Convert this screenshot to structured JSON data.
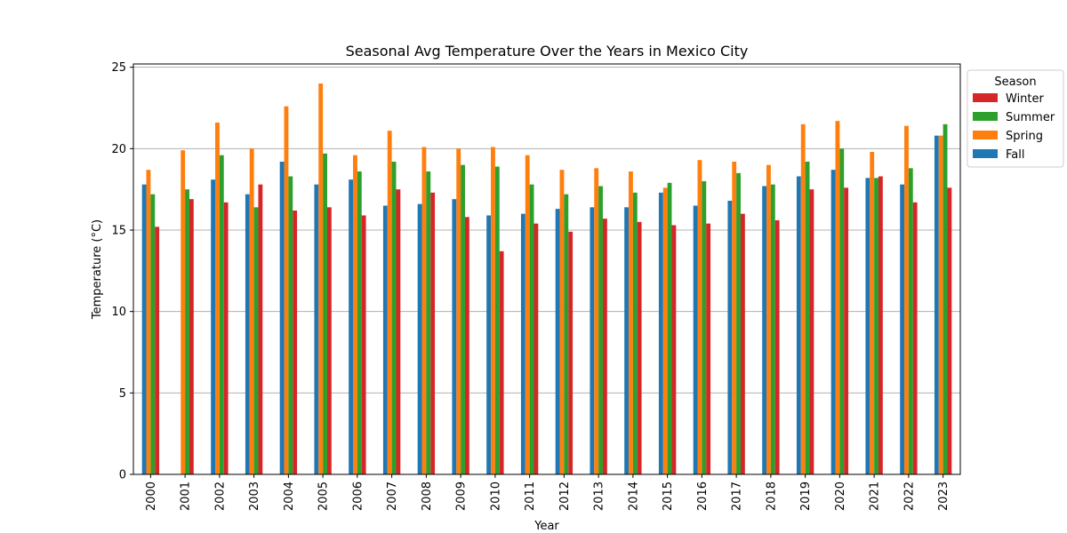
{
  "chart_data": {
    "type": "bar",
    "title": "Seasonal Avg Temperature Over the Years in Mexico City",
    "xlabel": "Year",
    "ylabel": "Temperature (°C)",
    "ylim": [
      0,
      25.2
    ],
    "yticks": [
      0,
      5,
      10,
      15,
      20,
      25
    ],
    "grid": "y",
    "legend_title": "Season",
    "legend_placement": "outside-top-right",
    "categories": [
      "2000",
      "2001",
      "2002",
      "2003",
      "2004",
      "2005",
      "2006",
      "2007",
      "2008",
      "2009",
      "2010",
      "2011",
      "2012",
      "2013",
      "2014",
      "2015",
      "2016",
      "2017",
      "2018",
      "2019",
      "2020",
      "2021",
      "2022",
      "2023"
    ],
    "series": [
      {
        "name": "Fall",
        "color": "#1f77b4",
        "values": [
          17.8,
          null,
          18.1,
          17.2,
          19.2,
          17.8,
          18.1,
          16.5,
          16.6,
          16.9,
          15.9,
          16.0,
          16.3,
          16.4,
          16.4,
          17.3,
          16.5,
          16.8,
          17.7,
          18.3,
          18.7,
          18.2,
          17.8,
          20.8
        ]
      },
      {
        "name": "Spring",
        "color": "#ff7f0e",
        "values": [
          18.7,
          19.9,
          21.6,
          20.0,
          22.6,
          24.0,
          19.6,
          21.1,
          20.1,
          20.0,
          20.1,
          19.6,
          18.7,
          18.8,
          18.6,
          17.6,
          19.3,
          19.2,
          19.0,
          21.5,
          21.7,
          19.8,
          21.4,
          20.8
        ]
      },
      {
        "name": "Summer",
        "color": "#2ca02c",
        "values": [
          17.2,
          17.5,
          19.6,
          16.4,
          18.3,
          19.7,
          18.6,
          19.2,
          18.6,
          19.0,
          18.9,
          17.8,
          17.2,
          17.7,
          17.3,
          17.9,
          18.0,
          18.5,
          17.8,
          19.2,
          20.0,
          18.2,
          18.8,
          21.5
        ]
      },
      {
        "name": "Winter",
        "color": "#d62728",
        "values": [
          15.2,
          16.9,
          16.7,
          17.8,
          16.2,
          16.4,
          15.9,
          17.5,
          17.3,
          15.8,
          13.7,
          15.4,
          14.9,
          15.7,
          15.5,
          15.3,
          15.4,
          16.0,
          15.6,
          17.5,
          17.6,
          18.3,
          16.7,
          17.6
        ]
      }
    ],
    "legend_order": [
      "Winter",
      "Summer",
      "Spring",
      "Fall"
    ]
  }
}
